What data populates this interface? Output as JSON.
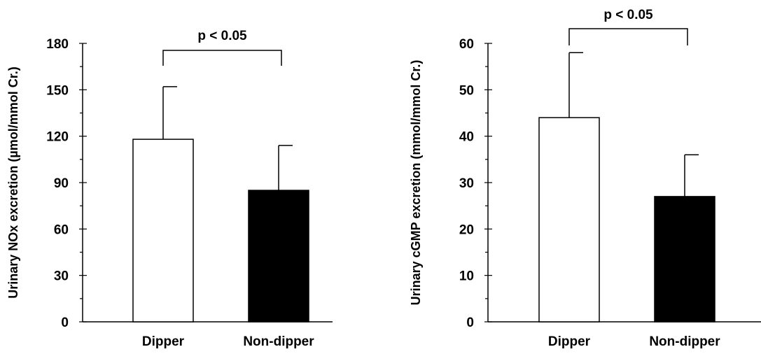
{
  "chart_data": [
    {
      "type": "bar",
      "categories": [
        "Dipper",
        "Non-dipper"
      ],
      "values": [
        118,
        85
      ],
      "errors": [
        34,
        29
      ],
      "bar_colors": [
        "#ffffff",
        "#000000"
      ],
      "ylabel": "Urinary NOx excretion  (µmol/mmol Cr.)",
      "ylim": [
        0,
        180
      ],
      "yticks": [
        "0",
        "30",
        "60",
        "90",
        "120",
        "150",
        "180"
      ],
      "annotation": "p < 0.05",
      "grid": false
    },
    {
      "type": "bar",
      "categories": [
        "Dipper",
        "Non-dipper"
      ],
      "values": [
        44,
        27
      ],
      "errors": [
        14,
        9
      ],
      "bar_colors": [
        "#ffffff",
        "#000000"
      ],
      "ylabel": "Urinary cGMP excretion (mmol/mmol Cr.)",
      "ylim": [
        0,
        60
      ],
      "yticks": [
        "0",
        "10",
        "20",
        "30",
        "40",
        "50",
        "60"
      ],
      "annotation": "p < 0.05",
      "grid": false
    }
  ]
}
